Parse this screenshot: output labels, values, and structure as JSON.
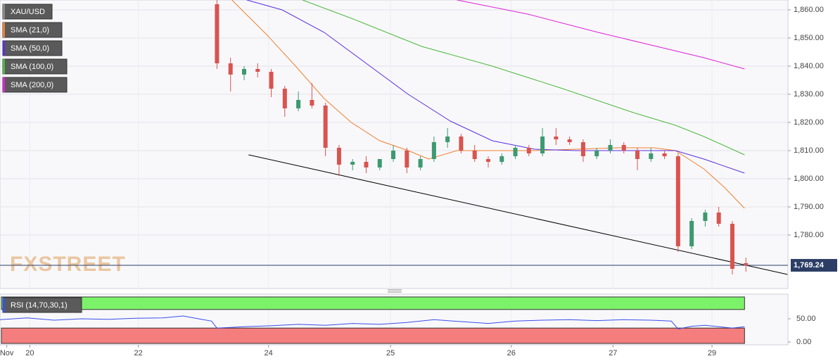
{
  "chart_data": {
    "type": "candlestick",
    "symbol": "XAU/USD",
    "watermark": "FXSTREET",
    "xlim": [
      -16,
      42.1
    ],
    "xticks": [
      {
        "value": -15.5,
        "label": "Nov"
      },
      {
        "value": -13.8,
        "label": "20"
      },
      {
        "value": -5.8,
        "label": "22"
      },
      {
        "value": 3.8,
        "label": "24"
      },
      {
        "value": 12.8,
        "label": "25"
      },
      {
        "value": 21.7,
        "label": "26"
      },
      {
        "value": 29.2,
        "label": "27"
      },
      {
        "value": 36.5,
        "label": "29"
      }
    ],
    "ylim": [
      1761,
      1863.5
    ],
    "yticks": [
      {
        "value": 1780,
        "label": "1,780.00"
      },
      {
        "value": 1790,
        "label": "1,790.00"
      },
      {
        "value": 1800,
        "label": "1,800.00"
      },
      {
        "value": 1810,
        "label": "1,810.00"
      },
      {
        "value": 1820,
        "label": "1,820.00"
      },
      {
        "value": 1830,
        "label": "1,830.00"
      },
      {
        "value": 1840,
        "label": "1,840.00"
      },
      {
        "value": 1850,
        "label": "1,850.00"
      },
      {
        "value": 1860,
        "label": "1,860.00"
      }
    ],
    "grid": true,
    "up_color": "#3d9970",
    "down_color": "#d9534f",
    "candles": {
      "x": [
        0,
        1,
        2,
        3,
        4,
        5,
        6,
        7,
        8,
        9,
        10,
        11,
        12,
        13,
        14,
        15,
        16,
        17,
        18,
        19,
        20,
        21,
        22,
        23,
        24,
        25,
        26,
        27,
        28,
        29,
        30,
        31,
        32,
        33,
        34,
        35,
        36,
        37,
        38,
        39
      ],
      "open": [
        1862,
        1841,
        1837,
        1839,
        1838,
        1832,
        1825,
        1828,
        1826,
        1811,
        1805,
        1806,
        1804,
        1807,
        1810,
        1804,
        1807,
        1813,
        1815,
        1810,
        1807,
        1806,
        1808,
        1811,
        1809,
        1815,
        1814,
        1813,
        1808,
        1810,
        1812,
        1810,
        1807,
        1809,
        1808,
        1776,
        1785,
        1788,
        1784,
        1770
      ],
      "high": [
        1863.5,
        1843,
        1840,
        1841,
        1839,
        1833,
        1831,
        1834,
        1827,
        1812,
        1807,
        1808,
        1806,
        1812,
        1811,
        1808,
        1815,
        1818,
        1816,
        1812,
        1808,
        1809,
        1812,
        1812,
        1818,
        1818,
        1815,
        1814,
        1811,
        1814,
        1813,
        1811,
        1811,
        1810,
        1809,
        1786,
        1789,
        1790,
        1785,
        1772
      ],
      "low": [
        1839,
        1831,
        1835,
        1836,
        1829,
        1822,
        1824,
        1825,
        1808,
        1801,
        1803,
        1802,
        1803,
        1806,
        1802,
        1803,
        1806,
        1811,
        1809,
        1806,
        1804,
        1805,
        1807,
        1808,
        1808,
        1812,
        1812,
        1806,
        1807,
        1809,
        1809,
        1803,
        1806,
        1807,
        1774,
        1775,
        1783,
        1783,
        1766,
        1767
      ],
      "close": [
        1841,
        1837,
        1839,
        1838,
        1832,
        1825,
        1828,
        1826,
        1811,
        1805,
        1806,
        1804,
        1807,
        1810,
        1804,
        1807,
        1813,
        1815,
        1810,
        1807,
        1806,
        1808,
        1811,
        1809,
        1815,
        1814,
        1813,
        1808,
        1810,
        1812,
        1810,
        1807,
        1809,
        1808,
        1776,
        1785,
        1788,
        1784,
        1768,
        1769.24
      ]
    },
    "last_price": {
      "value": 1769.24,
      "label": "1,769.24"
    },
    "series": [
      {
        "name": "SMA (21,0)",
        "color": "#f07f2b",
        "x": [
          1.1,
          3.7,
          5.8,
          7.9,
          9.9,
          12.0,
          14.1,
          15.6,
          17.7,
          20.3,
          23.4,
          26.5,
          29.6,
          32.2,
          33.8,
          35.9,
          37.4,
          38.9
        ],
        "values": [
          1863.5,
          1851,
          1840,
          1828.5,
          1820,
          1813.5,
          1810,
          1807,
          1810,
          1810,
          1810,
          1810.5,
          1811,
          1811,
          1810,
          1803.5,
          1797,
          1789.5
        ]
      },
      {
        "name": "SMA (50,0)",
        "color": "#5b2fe0",
        "x": [
          2.2,
          4.8,
          7.9,
          11.0,
          14.1,
          17.2,
          20.3,
          23.4,
          26.5,
          30.7,
          33.8,
          35.9,
          38.9
        ],
        "values": [
          1863.5,
          1860,
          1852,
          1841,
          1830,
          1820.5,
          1813.5,
          1810.5,
          1810,
          1810,
          1810,
          1807,
          1802
        ]
      },
      {
        "name": "SMA (100,0)",
        "color": "#4cb83a",
        "x": [
          6.3,
          9.9,
          15.1,
          20.3,
          25.5,
          30.7,
          33.8,
          35.9,
          38.9
        ],
        "values": [
          1863.5,
          1857,
          1847,
          1840,
          1832,
          1823.5,
          1819,
          1815,
          1808.5
        ]
      },
      {
        "name": "SMA (200,0)",
        "color": "#e020d8",
        "x": [
          17.7,
          22.9,
          28.1,
          33.3,
          35.9,
          38.9
        ],
        "values": [
          1863.5,
          1858.5,
          1852,
          1846,
          1843,
          1839
        ]
      }
    ],
    "trendline": {
      "color": "#000000",
      "x": [
        2.33,
        42.07
      ],
      "values": [
        1808.5,
        1766
      ]
    },
    "rsi": {
      "name": "RSI (14,70,30,1)",
      "color": "#3a4fe8",
      "ylim": [
        0,
        100
      ],
      "yticks": [
        {
          "value": 0,
          "label": "0.00"
        },
        {
          "value": 50,
          "label": "50.00"
        }
      ],
      "overbought": 70,
      "oversold": 30,
      "x": [
        -16,
        -14,
        -12,
        -10,
        -8,
        -6,
        -4,
        -2.5,
        -1,
        -0.4,
        0,
        2,
        4,
        6,
        8,
        10,
        12,
        14,
        16,
        18,
        20,
        22,
        24,
        26,
        28,
        30,
        32,
        33.5,
        34,
        35,
        36,
        37,
        38,
        38.9
      ],
      "values": [
        48,
        52,
        47,
        50,
        49,
        51,
        52,
        56,
        48,
        45,
        30,
        33,
        35,
        38,
        36,
        40,
        38,
        42,
        48,
        44,
        40,
        45,
        47,
        48,
        46,
        48,
        47,
        45,
        28,
        34,
        36,
        33,
        30,
        33
      ]
    }
  }
}
